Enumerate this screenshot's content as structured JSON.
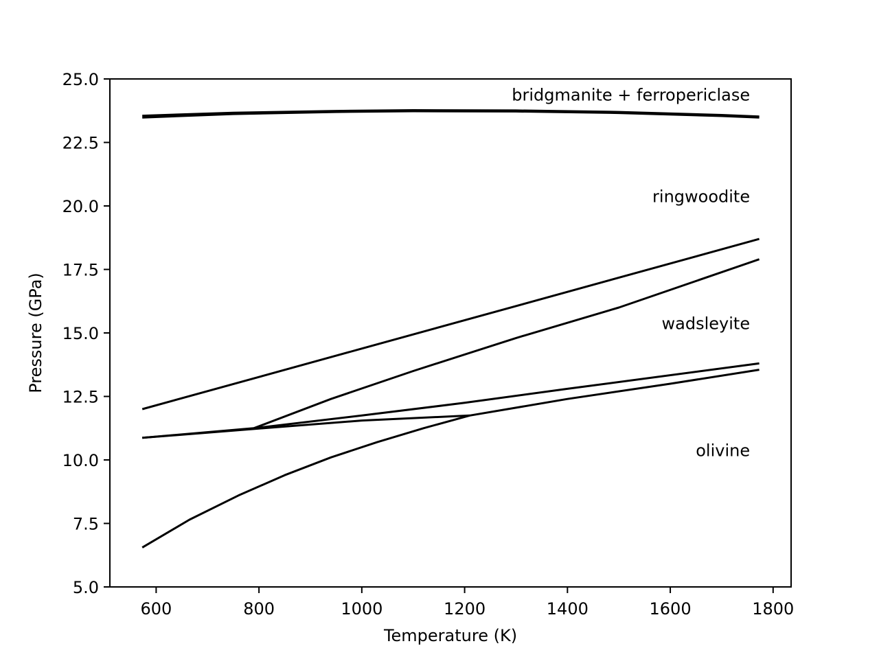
{
  "chart_data": {
    "type": "line",
    "title": "",
    "xlabel": "Temperature (K)",
    "ylabel": "Pressure (GPa)",
    "xlim": [
      510,
      1835
    ],
    "ylim": [
      5.0,
      25.0
    ],
    "x_ticks": [
      600,
      800,
      1000,
      1200,
      1400,
      1600,
      1800
    ],
    "x_tick_labels": [
      "600",
      "800",
      "1000",
      "1200",
      "1400",
      "1600",
      "1800"
    ],
    "y_ticks": [
      5.0,
      7.5,
      10.0,
      12.5,
      15.0,
      17.5,
      20.0,
      22.5,
      25.0
    ],
    "y_tick_labels": [
      "5.0",
      "7.5",
      "10.0",
      "12.5",
      "15.0",
      "17.5",
      "20.0",
      "22.5",
      "25.0"
    ],
    "grid": false,
    "legend": "none",
    "line_color": "#000000",
    "series": [
      {
        "name": "bridgmanite + ferropericlase boundary (upper)",
        "x": [
          573,
          750,
          950,
          1100,
          1300,
          1500,
          1700,
          1773
        ],
        "y": [
          23.55,
          23.67,
          23.74,
          23.77,
          23.76,
          23.7,
          23.58,
          23.52
        ]
      },
      {
        "name": "bridgmanite + ferropericlase boundary (lower)",
        "x": [
          573,
          750,
          950,
          1100,
          1300,
          1500,
          1700,
          1773
        ],
        "y": [
          23.48,
          23.62,
          23.7,
          23.73,
          23.72,
          23.66,
          23.54,
          23.48
        ]
      },
      {
        "name": "ringwoodite boundary",
        "x": [
          573,
          1773
        ],
        "y": [
          12.0,
          18.7
        ]
      },
      {
        "name": "wadsleyite-ringwoodite boundary",
        "x": [
          790,
          940,
          1100,
          1300,
          1500,
          1773
        ],
        "y": [
          11.25,
          12.4,
          13.5,
          14.8,
          16.0,
          17.9
        ]
      },
      {
        "name": "olivine-wadsleyite upper boundary",
        "x": [
          573,
          790,
          1000,
          1200,
          1400,
          1773
        ],
        "y": [
          10.87,
          11.25,
          11.75,
          12.25,
          12.8,
          13.8
        ]
      },
      {
        "name": "olivine-wadsleyite mid boundary",
        "x": [
          573,
          790,
          1000,
          1210
        ],
        "y": [
          10.87,
          11.22,
          11.55,
          11.75
        ]
      },
      {
        "name": "olivine lower boundary",
        "x": [
          573,
          665,
          760,
          850,
          940,
          1030,
          1120,
          1210,
          1400,
          1600,
          1773
        ],
        "y": [
          6.55,
          7.65,
          8.6,
          9.4,
          10.1,
          10.7,
          11.25,
          11.75,
          12.4,
          13.0,
          13.55
        ]
      }
    ],
    "annotations": [
      {
        "text": "bridgmanite + ferropericlase",
        "x": 1755,
        "y": 24.15,
        "anchor": "end"
      },
      {
        "text": "ringwoodite",
        "x": 1755,
        "y": 20.15,
        "anchor": "end"
      },
      {
        "text": "wadsleyite",
        "x": 1755,
        "y": 15.15,
        "anchor": "end"
      },
      {
        "text": "olivine",
        "x": 1755,
        "y": 10.15,
        "anchor": "end"
      }
    ]
  }
}
